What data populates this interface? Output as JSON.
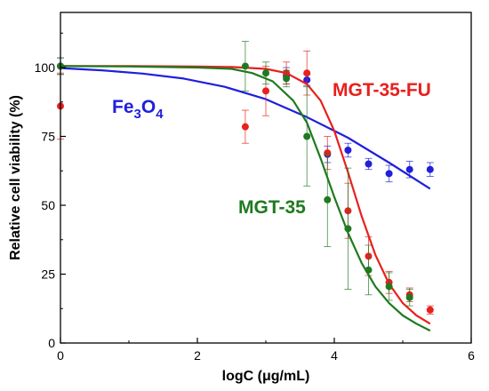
{
  "chart_data": {
    "type": "scatter",
    "title": "",
    "xlabel": "logC (μg/mL)",
    "ylabel": "Relative cell viability (%)",
    "xlim": [
      0,
      6
    ],
    "ylim": [
      0,
      120
    ],
    "x_ticks": [
      0,
      2,
      4,
      6
    ],
    "y_ticks": [
      0,
      25,
      50,
      75,
      100
    ],
    "grid": false,
    "legend": "inline labels",
    "series": [
      {
        "name": "Fe3O4",
        "label_main": "Fe",
        "label_sub1": "3",
        "label_mid": "O",
        "label_sub2": "4",
        "color": "#1f1fdc",
        "points": [
          {
            "x": 0,
            "y": 100.5,
            "err": 3
          },
          {
            "x": 3.3,
            "y": 97,
            "err": 3
          },
          {
            "x": 3.6,
            "y": 95.5,
            "err": 2
          },
          {
            "x": 3.9,
            "y": 68.5,
            "err": 3
          },
          {
            "x": 4.2,
            "y": 70,
            "err": 2.5
          },
          {
            "x": 4.5,
            "y": 65,
            "err": 2
          },
          {
            "x": 4.8,
            "y": 61.5,
            "err": 3
          },
          {
            "x": 5.1,
            "y": 63,
            "err": 3
          },
          {
            "x": 5.4,
            "y": 63,
            "err": 2.5
          }
        ],
        "curve": [
          [
            0,
            99.8
          ],
          [
            0.6,
            99
          ],
          [
            1.2,
            97.8
          ],
          [
            1.8,
            96
          ],
          [
            2.4,
            93
          ],
          [
            3.0,
            88.5
          ],
          [
            3.6,
            82
          ],
          [
            4.2,
            74.5
          ],
          [
            4.8,
            65.5
          ],
          [
            5.4,
            56
          ]
        ]
      },
      {
        "name": "MGT-35-FU",
        "color": "#e8201e",
        "points": [
          {
            "x": 0,
            "y": 86,
            "err": 12
          },
          {
            "x": 2.7,
            "y": 78.5,
            "err": 6
          },
          {
            "x": 3.0,
            "y": 91.5,
            "err": 9
          },
          {
            "x": 3.3,
            "y": 98,
            "err": 4
          },
          {
            "x": 3.6,
            "y": 98,
            "err": 8
          },
          {
            "x": 3.9,
            "y": 69,
            "err": 6
          },
          {
            "x": 4.2,
            "y": 48,
            "err": 10
          },
          {
            "x": 4.5,
            "y": 31.5,
            "err": 7
          },
          {
            "x": 4.8,
            "y": 22,
            "err": 4
          },
          {
            "x": 5.1,
            "y": 17.5,
            "err": 2.5
          },
          {
            "x": 5.4,
            "y": 12,
            "err": 1.5
          }
        ],
        "curve": [
          [
            0,
            100.5
          ],
          [
            1,
            100.5
          ],
          [
            2,
            100.4
          ],
          [
            2.5,
            100.2
          ],
          [
            3.0,
            99.5
          ],
          [
            3.3,
            98
          ],
          [
            3.6,
            94
          ],
          [
            3.8,
            88
          ],
          [
            4.0,
            77
          ],
          [
            4.2,
            62
          ],
          [
            4.4,
            46
          ],
          [
            4.6,
            32
          ],
          [
            4.8,
            21.5
          ],
          [
            5.0,
            14.5
          ],
          [
            5.2,
            10
          ],
          [
            5.4,
            7
          ]
        ]
      },
      {
        "name": "MGT-35",
        "color": "#1f7a1f",
        "points": [
          {
            "x": 0,
            "y": 100.5,
            "err": 3
          },
          {
            "x": 2.7,
            "y": 100.5,
            "err": 9
          },
          {
            "x": 3.0,
            "y": 98,
            "err": 4
          },
          {
            "x": 3.3,
            "y": 96,
            "err": 3
          },
          {
            "x": 3.6,
            "y": 75,
            "err": 18
          },
          {
            "x": 3.9,
            "y": 52,
            "err": 17
          },
          {
            "x": 4.2,
            "y": 41.5,
            "err": 22
          },
          {
            "x": 4.5,
            "y": 26.5,
            "err": 9
          },
          {
            "x": 4.8,
            "y": 20.5,
            "err": 5
          },
          {
            "x": 5.1,
            "y": 16.5,
            "err": 3
          }
        ],
        "curve": [
          [
            0,
            100.5
          ],
          [
            1,
            100.4
          ],
          [
            2,
            100
          ],
          [
            2.5,
            99.5
          ],
          [
            2.8,
            98
          ],
          [
            3.1,
            95
          ],
          [
            3.4,
            88
          ],
          [
            3.6,
            80
          ],
          [
            3.8,
            67
          ],
          [
            4.0,
            53
          ],
          [
            4.2,
            40
          ],
          [
            4.4,
            29
          ],
          [
            4.6,
            20.5
          ],
          [
            4.8,
            14.5
          ],
          [
            5.0,
            10
          ],
          [
            5.2,
            7
          ],
          [
            5.4,
            4.5
          ]
        ]
      }
    ],
    "overlap_color": "#7a4a12"
  }
}
